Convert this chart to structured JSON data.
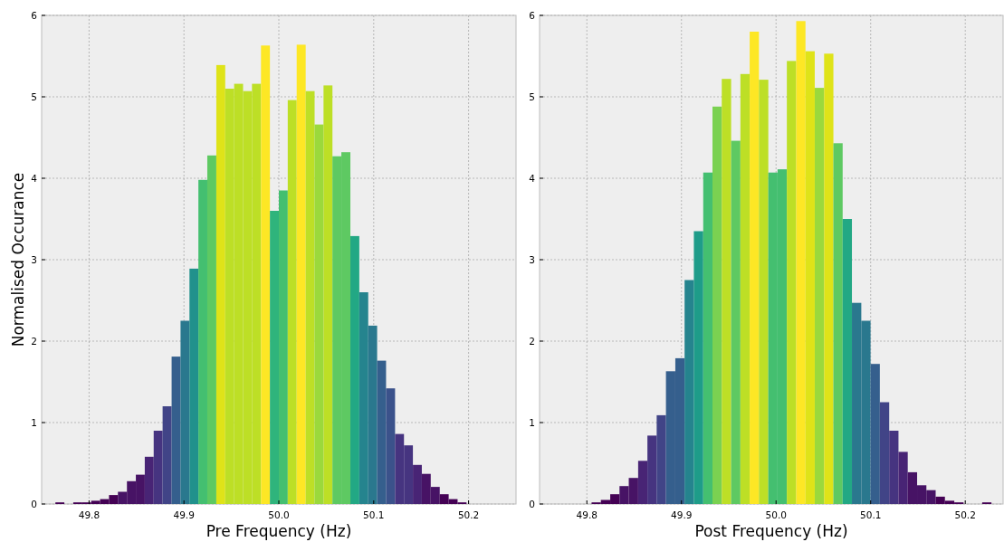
{
  "chart_data": [
    {
      "type": "histogram",
      "xlabel": "Pre Frequency (Hz)",
      "ylabel": "Normalised Occurance",
      "xlim": [
        49.75,
        50.25
      ],
      "ylim": [
        0,
        6
      ],
      "xticks": [
        49.8,
        49.9,
        {
          "value": 50,
          "label": "50.0"
        },
        50.1,
        50.2
      ],
      "yticks": [
        0,
        1,
        2,
        3,
        4,
        5,
        6
      ],
      "grid": true,
      "bins": [
        49.7645,
        49.7739,
        49.7833,
        49.7928,
        49.8022,
        49.8116,
        49.821,
        49.8304,
        49.8399,
        49.8493,
        49.8587,
        49.8681,
        49.8775,
        49.887,
        49.8964,
        49.9058,
        49.9152,
        49.9246,
        49.9341,
        49.9435,
        49.9529,
        49.9623,
        49.9717,
        49.9812,
        49.9906,
        50.0,
        50.0094,
        50.0188,
        50.0283,
        50.0377,
        50.0471,
        50.0565,
        50.0659,
        50.0754,
        50.0848,
        50.0942,
        50.1036,
        50.113,
        50.1225,
        50.1319,
        50.1413,
        50.1507,
        50.1601,
        50.1696,
        50.179,
        50.1884,
        50.1978
      ],
      "values": [
        0.02,
        0,
        0.02,
        0.02,
        0.04,
        0.06,
        0.11,
        0.15,
        0.28,
        0.36,
        0.58,
        0.9,
        1.2,
        1.81,
        2.25,
        2.89,
        3.98,
        4.28,
        5.39,
        5.1,
        5.16,
        5.07,
        5.16,
        5.63,
        3.6,
        3.85,
        4.96,
        5.64,
        5.07,
        4.66,
        5.14,
        4.27,
        4.32,
        3.29,
        2.6,
        2.19,
        1.76,
        1.42,
        0.86,
        0.72,
        0.48,
        0.37,
        0.21,
        0.12,
        0.06,
        0.02
      ],
      "colors": [
        "#440154",
        "#440154",
        "#440154",
        "#440154",
        "#440154",
        "#440154",
        "#440154",
        "#471365",
        "#471365",
        "#471365",
        "#482475",
        "#463480",
        "#414487",
        "#355f8d",
        "#2a788e",
        "#21918c",
        "#44bf70",
        "#5ec962",
        "#dfe318",
        "#bddf26",
        "#bddf26",
        "#bddf26",
        "#bddf26",
        "#fde725",
        "#2fb47c",
        "#44bf70",
        "#bddf26",
        "#fde725",
        "#bddf26",
        "#9bd93c",
        "#bddf26",
        "#5ec962",
        "#5ec962",
        "#22a884",
        "#25848e",
        "#2a788e",
        "#355f8d",
        "#3b528b",
        "#463480",
        "#463480",
        "#482475",
        "#471365",
        "#471365",
        "#440154",
        "#440154",
        "#440154"
      ]
    },
    {
      "type": "histogram",
      "xlabel": "Post Frequency (Hz)",
      "xlim": [
        49.75,
        50.24
      ],
      "ylim": [
        0,
        6
      ],
      "xticks": [
        49.8,
        49.9,
        {
          "value": 50,
          "label": "50.0"
        },
        50.1,
        50.2
      ],
      "yticks": [
        0,
        1,
        2,
        3,
        4,
        5,
        6
      ],
      "grid": true,
      "bins": [
        49.805,
        49.8148,
        49.8247,
        49.8345,
        49.8443,
        49.8542,
        49.864,
        49.8738,
        49.8836,
        49.8935,
        49.9033,
        49.9131,
        49.923,
        49.9328,
        49.9426,
        49.9525,
        49.9623,
        49.9721,
        49.9819,
        49.9918,
        50.0016,
        50.0114,
        50.0213,
        50.0311,
        50.0409,
        50.0508,
        50.0606,
        50.0704,
        50.0802,
        50.0901,
        50.0999,
        50.1097,
        50.1196,
        50.1294,
        50.1392,
        50.1491,
        50.1589,
        50.1687,
        50.1785,
        50.1884,
        50.1982,
        50.208,
        50.2179,
        50.2277
      ],
      "values": [
        0.02,
        0.05,
        0.12,
        0.22,
        0.32,
        0.53,
        0.84,
        1.09,
        1.63,
        1.79,
        2.75,
        3.35,
        4.07,
        4.88,
        5.22,
        4.46,
        5.28,
        5.8,
        5.21,
        4.07,
        4.11,
        5.44,
        5.93,
        5.56,
        5.11,
        5.53,
        4.43,
        3.5,
        2.47,
        2.25,
        1.72,
        1.25,
        0.9,
        0.64,
        0.39,
        0.23,
        0.17,
        0.09,
        0.04,
        0.02,
        0,
        0,
        0.02
      ],
      "colors": [
        "#440154",
        "#440154",
        "#440154",
        "#471365",
        "#471365",
        "#482475",
        "#463480",
        "#414487",
        "#355f8d",
        "#355f8d",
        "#25848e",
        "#1e9c89",
        "#44bf70",
        "#7ad151",
        "#bddf26",
        "#5ec962",
        "#bddf26",
        "#fde725",
        "#bddf26",
        "#44bf70",
        "#44bf70",
        "#bddf26",
        "#fde725",
        "#dfe318",
        "#9bd93c",
        "#dfe318",
        "#5ec962",
        "#22a884",
        "#2a788e",
        "#2a788e",
        "#355f8d",
        "#414487",
        "#463480",
        "#482475",
        "#471365",
        "#471365",
        "#471365",
        "#440154",
        "#440154",
        "#440154",
        "#440154",
        "#440154",
        "#440154"
      ]
    }
  ]
}
